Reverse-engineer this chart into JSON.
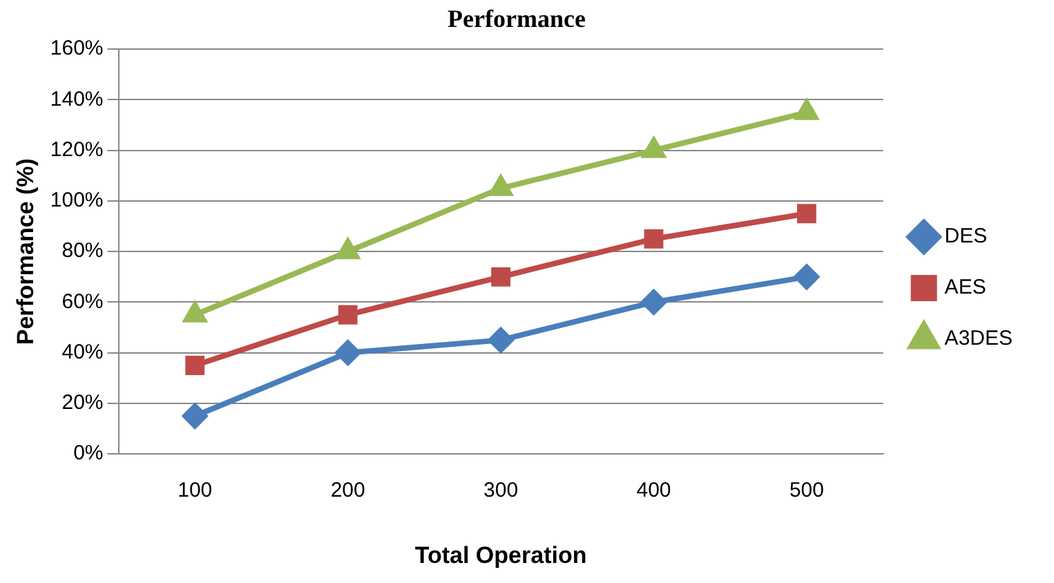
{
  "chart_data": {
    "type": "line",
    "title": "Performance",
    "xlabel": "Total Operation",
    "ylabel": "Performance (%)",
    "categories": [
      "100",
      "200",
      "300",
      "400",
      "500"
    ],
    "series": [
      {
        "name": "DES",
        "color": "#4a7ebb",
        "marker": "diamond",
        "values": [
          15,
          40,
          45,
          60,
          70
        ]
      },
      {
        "name": "AES",
        "color": "#be4b48",
        "marker": "square",
        "values": [
          35,
          55,
          70,
          85,
          95
        ]
      },
      {
        "name": "A3DES",
        "color": "#98b954",
        "marker": "triangle",
        "values": [
          55,
          80,
          105,
          120,
          135
        ]
      }
    ],
    "ylim": [
      0,
      160
    ],
    "yticks": [
      {
        "value": 0,
        "label": "0%"
      },
      {
        "value": 20,
        "label": "20%"
      },
      {
        "value": 40,
        "label": "40%"
      },
      {
        "value": 60,
        "label": "60%"
      },
      {
        "value": 80,
        "label": "80%"
      },
      {
        "value": 100,
        "label": "100%"
      },
      {
        "value": 120,
        "label": "120%"
      },
      {
        "value": 140,
        "label": "140%"
      },
      {
        "value": 160,
        "label": "160%"
      }
    ],
    "grid": "y",
    "legend": "right",
    "line_style": "solid"
  }
}
